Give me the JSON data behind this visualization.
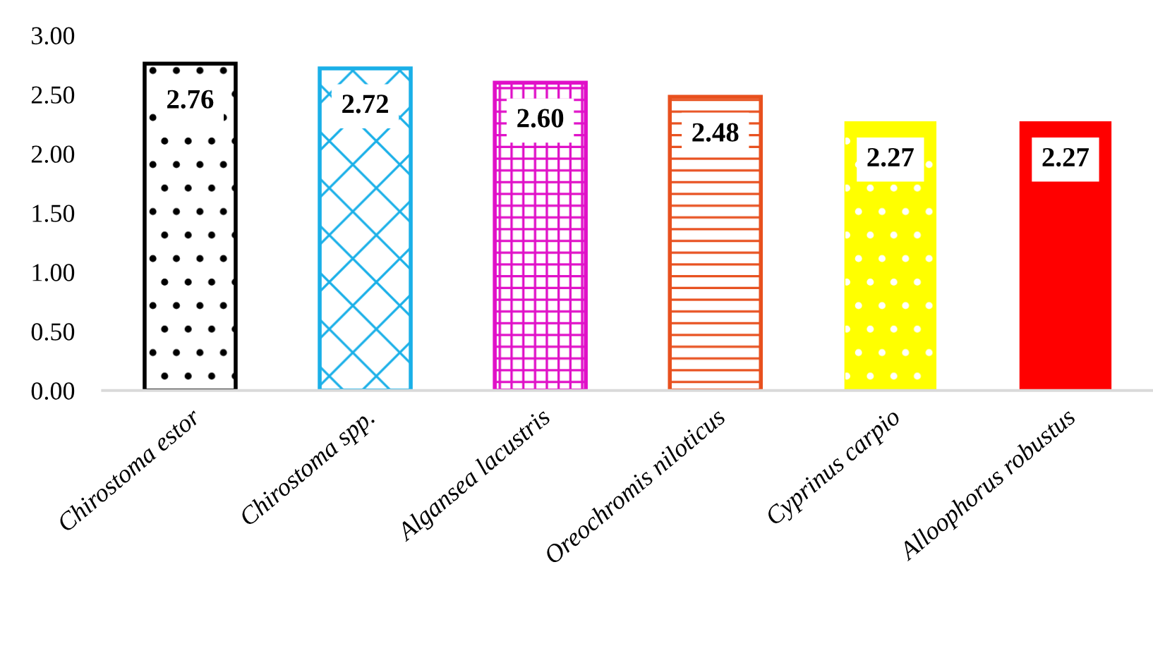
{
  "chart_data": {
    "type": "bar",
    "categories": [
      "Chirostoma estor",
      "Chirostoma spp.",
      "Algansea lacustris",
      "Oreochromis niloticus",
      "Cyprinus carpio",
      "Alloophorus robustus"
    ],
    "values": [
      2.76,
      2.72,
      2.6,
      2.48,
      2.27,
      2.27
    ],
    "colors": [
      "#000000",
      "#1ab0e8",
      "#e010c8",
      "#e8501e",
      "#ffff00",
      "#ff0000"
    ],
    "value_labels": [
      "2.76",
      "2.72",
      "2.60",
      "2.48",
      "2.27",
      "2.27"
    ],
    "ylim": [
      0,
      3
    ],
    "yticks": [
      {
        "value": 0,
        "label": "0.00"
      },
      {
        "value": 0.5,
        "label": "0.50"
      },
      {
        "value": 1,
        "label": "1.00"
      },
      {
        "value": 1.5,
        "label": "1.50"
      },
      {
        "value": 2,
        "label": "2.00"
      },
      {
        "value": 2.5,
        "label": "2.50"
      },
      {
        "value": 3,
        "label": "3.00"
      }
    ],
    "grid": false,
    "legend": false
  }
}
